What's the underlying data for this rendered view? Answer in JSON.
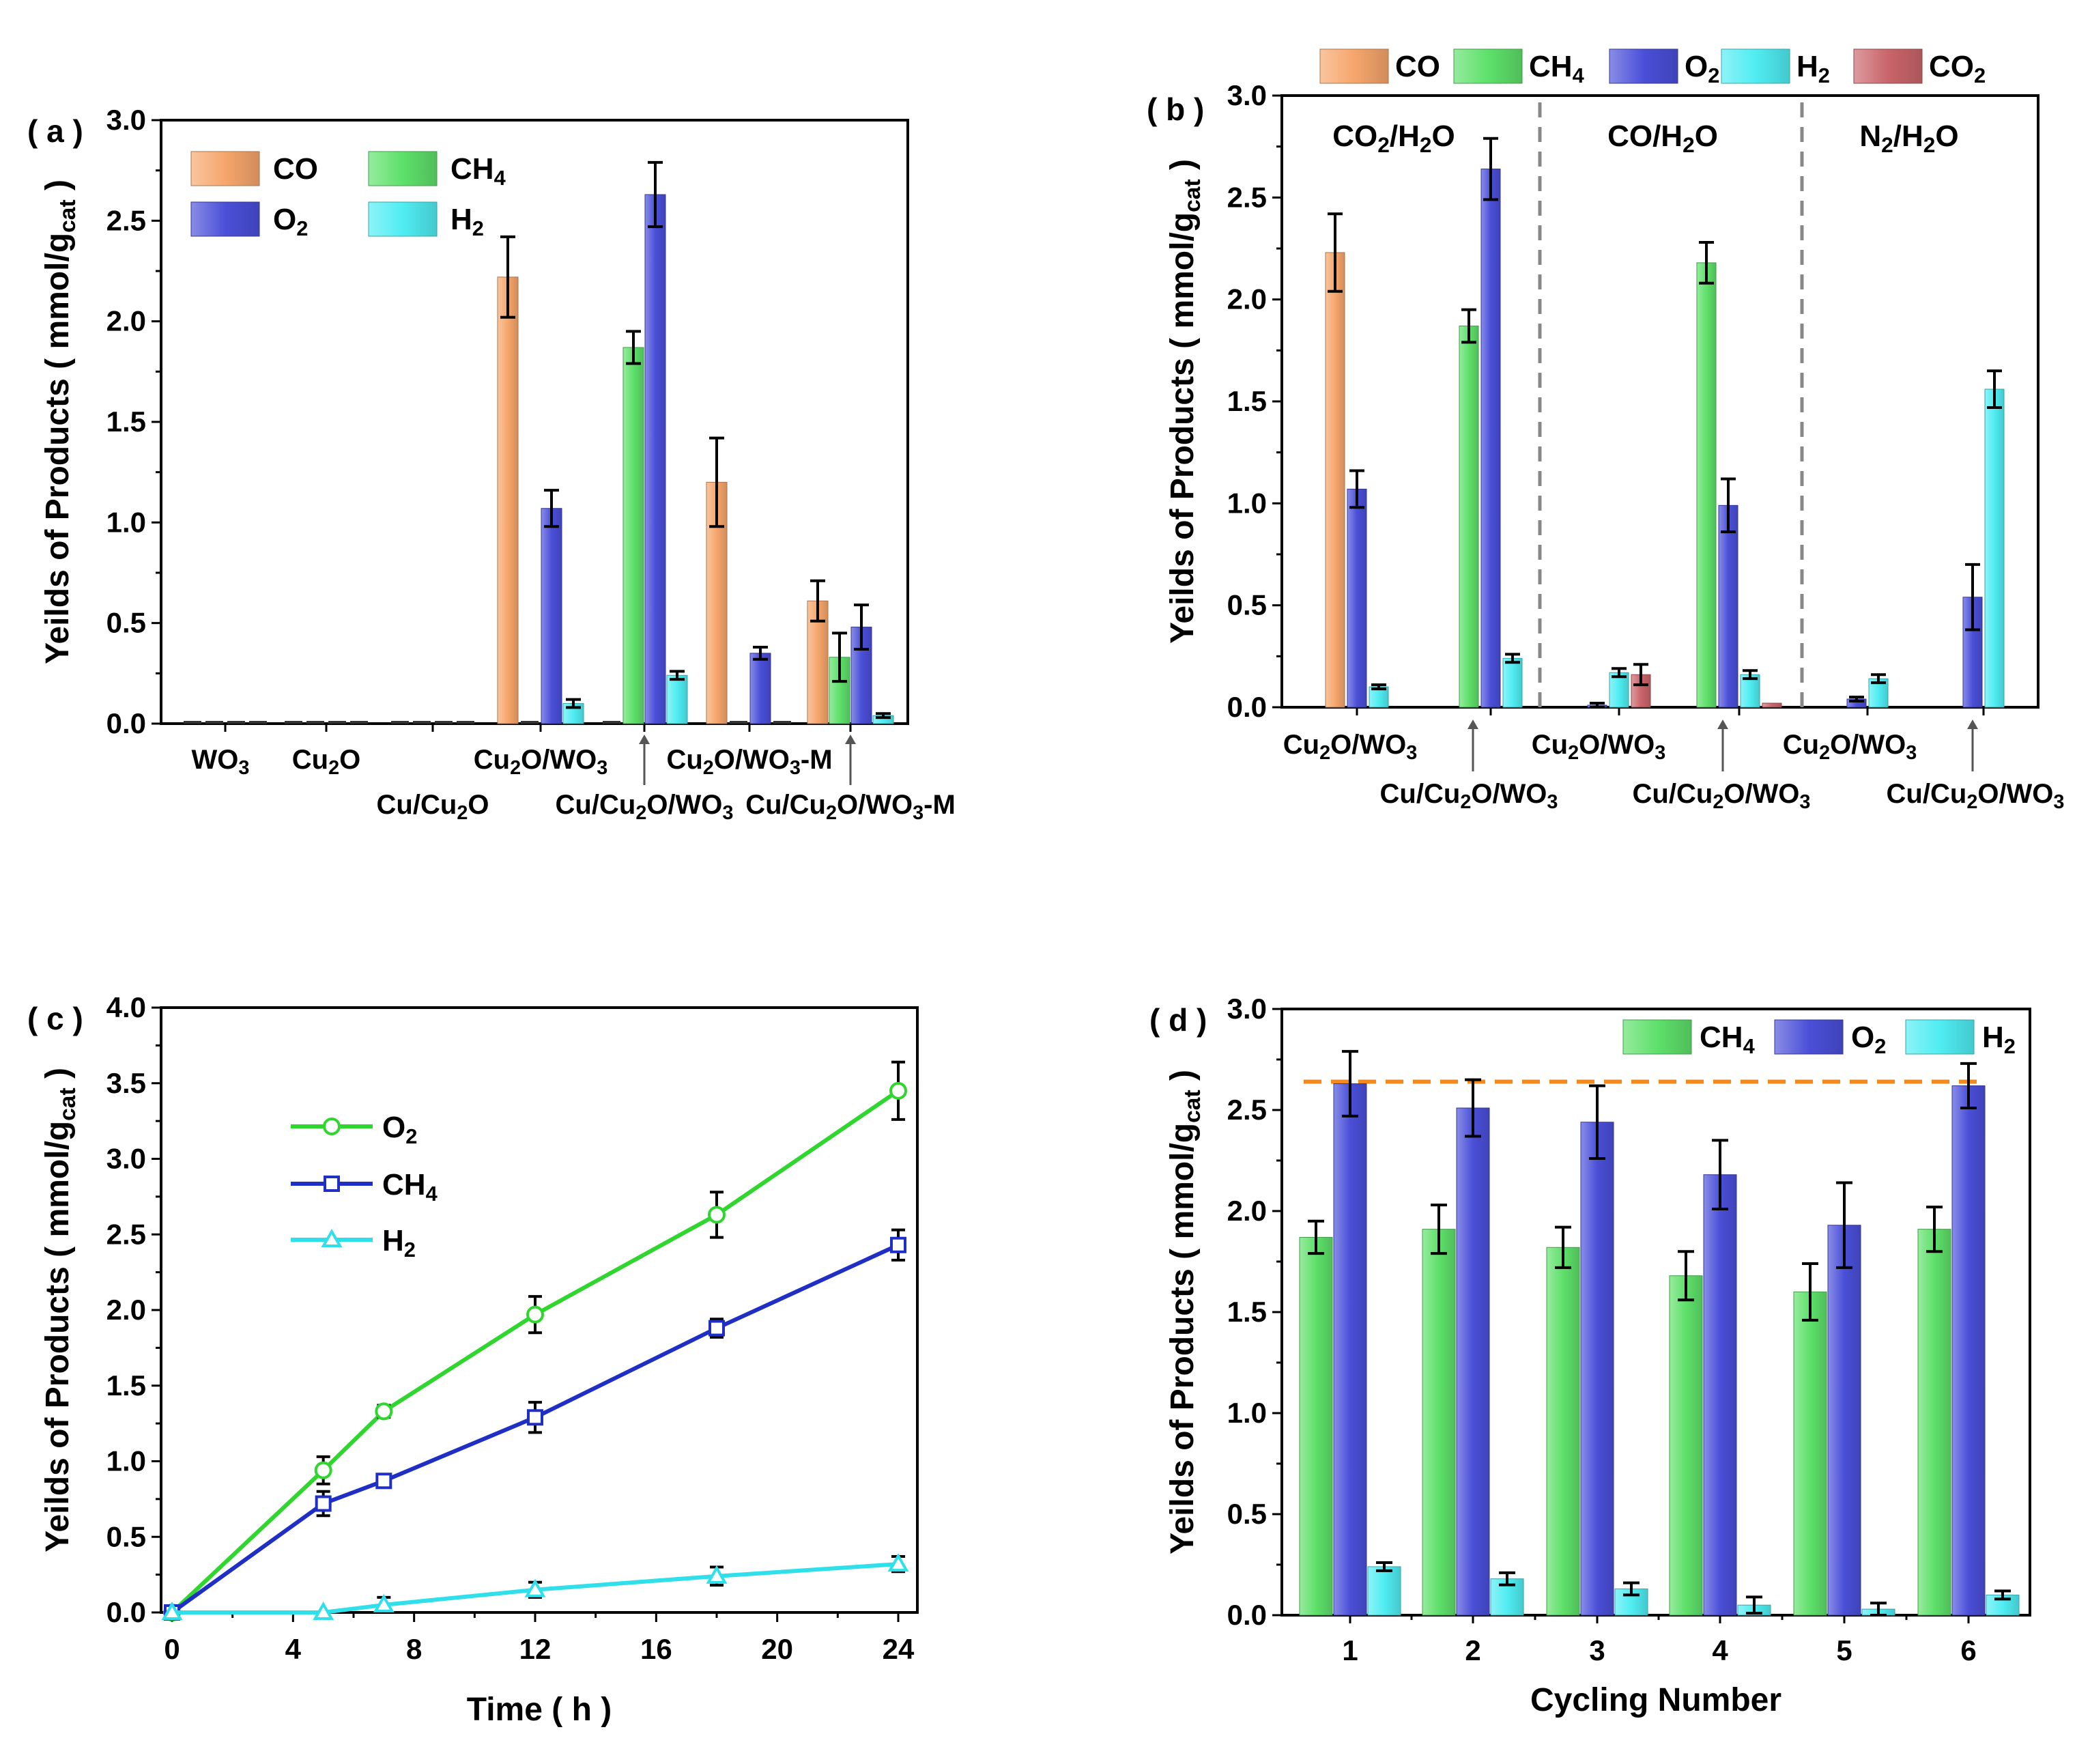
{
  "colors": {
    "CO": "#F6A66C",
    "CH4": "#5EE06A",
    "O2": "#4A4FD8",
    "H2": "#4FEDF2",
    "CO2": "#C9656A",
    "line_O2": "#2ED62E",
    "line_CH4": "#1F2FC4",
    "line_H2": "#2FE0EA",
    "ref_line": "#F28A1E"
  },
  "chart_data": [
    {
      "id": "a",
      "type": "bar",
      "panel_label": "( a )",
      "ylabel": "Yeilds of Products ( mmol/g",
      "ylabel_sub": "cat",
      "ylabel_end": " )",
      "ylim": [
        0,
        3.0
      ],
      "yticks": [
        "0.0",
        "0.5",
        "1.0",
        "1.5",
        "2.0",
        "2.5",
        "3.0"
      ],
      "legend": [
        {
          "key": "CO",
          "text": "CO",
          "sub": ""
        },
        {
          "key": "CH4",
          "text": "CH",
          "sub": "4"
        },
        {
          "key": "O2",
          "text": "O",
          "sub": "2"
        },
        {
          "key": "H2",
          "text": "H",
          "sub": "2"
        }
      ],
      "categories": [
        {
          "parts": [
            [
              "WO",
              "n"
            ],
            [
              "3",
              "s"
            ]
          ]
        },
        {
          "parts": [
            [
              "Cu",
              "n"
            ],
            [
              "2",
              "s"
            ],
            [
              "O",
              "n"
            ]
          ]
        },
        {
          "parts": [
            [
              "Cu/Cu",
              "n"
            ],
            [
              "2",
              "s"
            ],
            [
              "O",
              "n"
            ]
          ]
        },
        {
          "parts": [
            [
              "Cu",
              "n"
            ],
            [
              "2",
              "s"
            ],
            [
              "O/WO",
              "n"
            ],
            [
              "3",
              "s"
            ]
          ]
        },
        {
          "parts": [
            [
              "Cu/Cu",
              "n"
            ],
            [
              "2",
              "s"
            ],
            [
              "O/WO",
              "n"
            ],
            [
              "3",
              "s"
            ]
          ]
        },
        {
          "parts": [
            [
              "Cu",
              "n"
            ],
            [
              "2",
              "s"
            ],
            [
              "O/WO",
              "n"
            ],
            [
              "3",
              "s"
            ],
            [
              "-M",
              "n"
            ]
          ]
        },
        {
          "parts": [
            [
              "Cu/Cu",
              "n"
            ],
            [
              "2",
              "s"
            ],
            [
              "O/WO",
              "n"
            ],
            [
              "3",
              "s"
            ],
            [
              "-M",
              "n"
            ]
          ]
        }
      ],
      "series": [
        {
          "key": "CO",
          "values": [
            0,
            0,
            0,
            2.22,
            0,
            1.2,
            0.61
          ],
          "errors": [
            0,
            0,
            0,
            0.2,
            0,
            0.22,
            0.1
          ]
        },
        {
          "key": "CH4",
          "values": [
            0,
            0,
            0,
            0,
            1.87,
            0,
            0.33
          ],
          "errors": [
            0,
            0,
            0,
            0,
            0.08,
            0,
            0.12
          ]
        },
        {
          "key": "O2",
          "values": [
            0,
            0,
            0,
            1.07,
            2.63,
            0.35,
            0.48
          ],
          "errors": [
            0,
            0,
            0,
            0.09,
            0.16,
            0.03,
            0.11
          ]
        },
        {
          "key": "H2",
          "values": [
            0,
            0,
            0,
            0.1,
            0.24,
            0,
            0.04
          ],
          "errors": [
            0,
            0,
            0,
            0.02,
            0.02,
            0,
            0.01
          ]
        }
      ]
    },
    {
      "id": "b",
      "type": "bar",
      "panel_label": "( b )",
      "ylabel": "Yeilds of Products ( mmol/g",
      "ylabel_sub": "cat",
      "ylabel_end": " )",
      "ylim": [
        0,
        3.0
      ],
      "yticks": [
        "0.0",
        "0.5",
        "1.0",
        "1.5",
        "2.0",
        "2.5",
        "3.0"
      ],
      "legend": [
        {
          "key": "CO",
          "text": "CO",
          "sub": ""
        },
        {
          "key": "CH4",
          "text": "CH",
          "sub": "4"
        },
        {
          "key": "O2",
          "text": "O",
          "sub": "2"
        },
        {
          "key": "H2",
          "text": "H",
          "sub": "2"
        },
        {
          "key": "CO2",
          "text": "CO",
          "sub": "2"
        }
      ],
      "sections": [
        {
          "parts": [
            [
              "CO",
              "n"
            ],
            [
              "2",
              "s"
            ],
            [
              "/H",
              "n"
            ],
            [
              "2",
              "s"
            ],
            [
              "O",
              "n"
            ]
          ]
        },
        {
          "parts": [
            [
              "CO/H",
              "n"
            ],
            [
              "2",
              "s"
            ],
            [
              "O",
              "n"
            ]
          ]
        },
        {
          "parts": [
            [
              "N",
              "n"
            ],
            [
              "2",
              "s"
            ],
            [
              "/H",
              "n"
            ],
            [
              "2",
              "s"
            ],
            [
              "O",
              "n"
            ]
          ]
        }
      ],
      "categories": [
        {
          "parts": [
            [
              "Cu",
              "n"
            ],
            [
              "2",
              "s"
            ],
            [
              "O/WO",
              "n"
            ],
            [
              "3",
              "s"
            ]
          ]
        },
        {
          "parts": [
            [
              "Cu/Cu",
              "n"
            ],
            [
              "2",
              "s"
            ],
            [
              "O/WO",
              "n"
            ],
            [
              "3",
              "s"
            ]
          ]
        },
        {
          "parts": [
            [
              "Cu",
              "n"
            ],
            [
              "2",
              "s"
            ],
            [
              "O/WO",
              "n"
            ],
            [
              "3",
              "s"
            ]
          ]
        },
        {
          "parts": [
            [
              "Cu/Cu",
              "n"
            ],
            [
              "2",
              "s"
            ],
            [
              "O/WO",
              "n"
            ],
            [
              "3",
              "s"
            ]
          ]
        },
        {
          "parts": [
            [
              "Cu",
              "n"
            ],
            [
              "2",
              "s"
            ],
            [
              "O/WO",
              "n"
            ],
            [
              "3",
              "s"
            ]
          ]
        },
        {
          "parts": [
            [
              "Cu/Cu",
              "n"
            ],
            [
              "2",
              "s"
            ],
            [
              "O/WO",
              "n"
            ],
            [
              "3",
              "s"
            ]
          ]
        }
      ],
      "series": [
        {
          "key": "CO",
          "values": [
            2.23,
            0,
            0,
            0,
            0,
            0
          ],
          "errors": [
            0.19,
            0,
            0,
            0,
            0,
            0
          ]
        },
        {
          "key": "CH4",
          "values": [
            0,
            1.87,
            0,
            2.18,
            0,
            0
          ],
          "errors": [
            0,
            0.08,
            0,
            0.1,
            0,
            0
          ]
        },
        {
          "key": "O2",
          "values": [
            1.07,
            2.64,
            0.01,
            0.99,
            0.04,
            0.54
          ],
          "errors": [
            0.09,
            0.15,
            0.01,
            0.13,
            0.01,
            0.16
          ]
        },
        {
          "key": "H2",
          "values": [
            0.1,
            0.24,
            0.17,
            0.16,
            0.14,
            1.56
          ],
          "errors": [
            0.01,
            0.02,
            0.02,
            0.02,
            0.02,
            0.09
          ]
        },
        {
          "key": "CO2",
          "values": [
            0,
            0,
            0.16,
            0.02,
            0,
            0
          ],
          "errors": [
            0,
            0,
            0.05,
            0,
            0,
            0
          ]
        }
      ]
    },
    {
      "id": "c",
      "type": "line",
      "panel_label": "( c )",
      "ylabel": "Yeilds of Products ( mmol/g",
      "ylabel_sub": "cat",
      "ylabel_end": " )",
      "xlabel": "Time ( h )",
      "xlim": [
        0,
        24
      ],
      "ylim": [
        0,
        4.0
      ],
      "xticks": [
        0,
        4,
        8,
        12,
        16,
        20,
        24
      ],
      "yticks": [
        "0.0",
        "0.5",
        "1.0",
        "1.5",
        "2.0",
        "2.5",
        "3.0",
        "3.5",
        "4.0"
      ],
      "x": [
        0,
        5,
        7,
        12,
        18,
        24
      ],
      "series": [
        {
          "key": "O2",
          "name": "O",
          "sub": "2",
          "marker": "circle",
          "values": [
            0,
            0.94,
            1.33,
            1.97,
            2.63,
            3.45
          ],
          "errors": [
            0,
            0.09,
            0.04,
            0.12,
            0.15,
            0.19
          ]
        },
        {
          "key": "CH4",
          "name": "CH",
          "sub": "4",
          "marker": "square",
          "values": [
            0,
            0.72,
            0.87,
            1.29,
            1.88,
            2.43
          ],
          "errors": [
            0,
            0.08,
            0.04,
            0.1,
            0.06,
            0.1
          ]
        },
        {
          "key": "H2",
          "name": "H",
          "sub": "2",
          "marker": "triangle",
          "values": [
            0,
            0,
            0.05,
            0.15,
            0.24,
            0.32
          ],
          "errors": [
            0,
            0,
            0.05,
            0.05,
            0.06,
            0.05
          ]
        }
      ]
    },
    {
      "id": "d",
      "type": "bar",
      "panel_label": "( d )",
      "ylabel": "Yeilds of Products ( mmol/g",
      "ylabel_sub": "cat",
      "ylabel_end": " )",
      "xlabel": "Cycling Number",
      "ylim": [
        0,
        3.0
      ],
      "yticks": [
        "0.0",
        "0.5",
        "1.0",
        "1.5",
        "2.0",
        "2.5",
        "3.0"
      ],
      "legend": [
        {
          "key": "CH4",
          "text": "CH",
          "sub": "4"
        },
        {
          "key": "O2",
          "text": "O",
          "sub": "2"
        },
        {
          "key": "H2",
          "text": "H",
          "sub": "2"
        }
      ],
      "categories": [
        "1",
        "2",
        "3",
        "4",
        "5",
        "6"
      ],
      "reference_line": 2.64,
      "series": [
        {
          "key": "CH4",
          "values": [
            1.87,
            1.91,
            1.82,
            1.68,
            1.6,
            1.91
          ],
          "errors": [
            0.08,
            0.12,
            0.1,
            0.12,
            0.14,
            0.11
          ]
        },
        {
          "key": "O2",
          "values": [
            2.63,
            2.51,
            2.44,
            2.18,
            1.93,
            2.62
          ],
          "errors": [
            0.16,
            0.14,
            0.18,
            0.17,
            0.21,
            0.11
          ]
        },
        {
          "key": "H2",
          "values": [
            0.24,
            0.18,
            0.13,
            0.05,
            0.03,
            0.1
          ],
          "errors": [
            0.02,
            0.03,
            0.03,
            0.04,
            0.03,
            0.02
          ]
        }
      ]
    }
  ]
}
